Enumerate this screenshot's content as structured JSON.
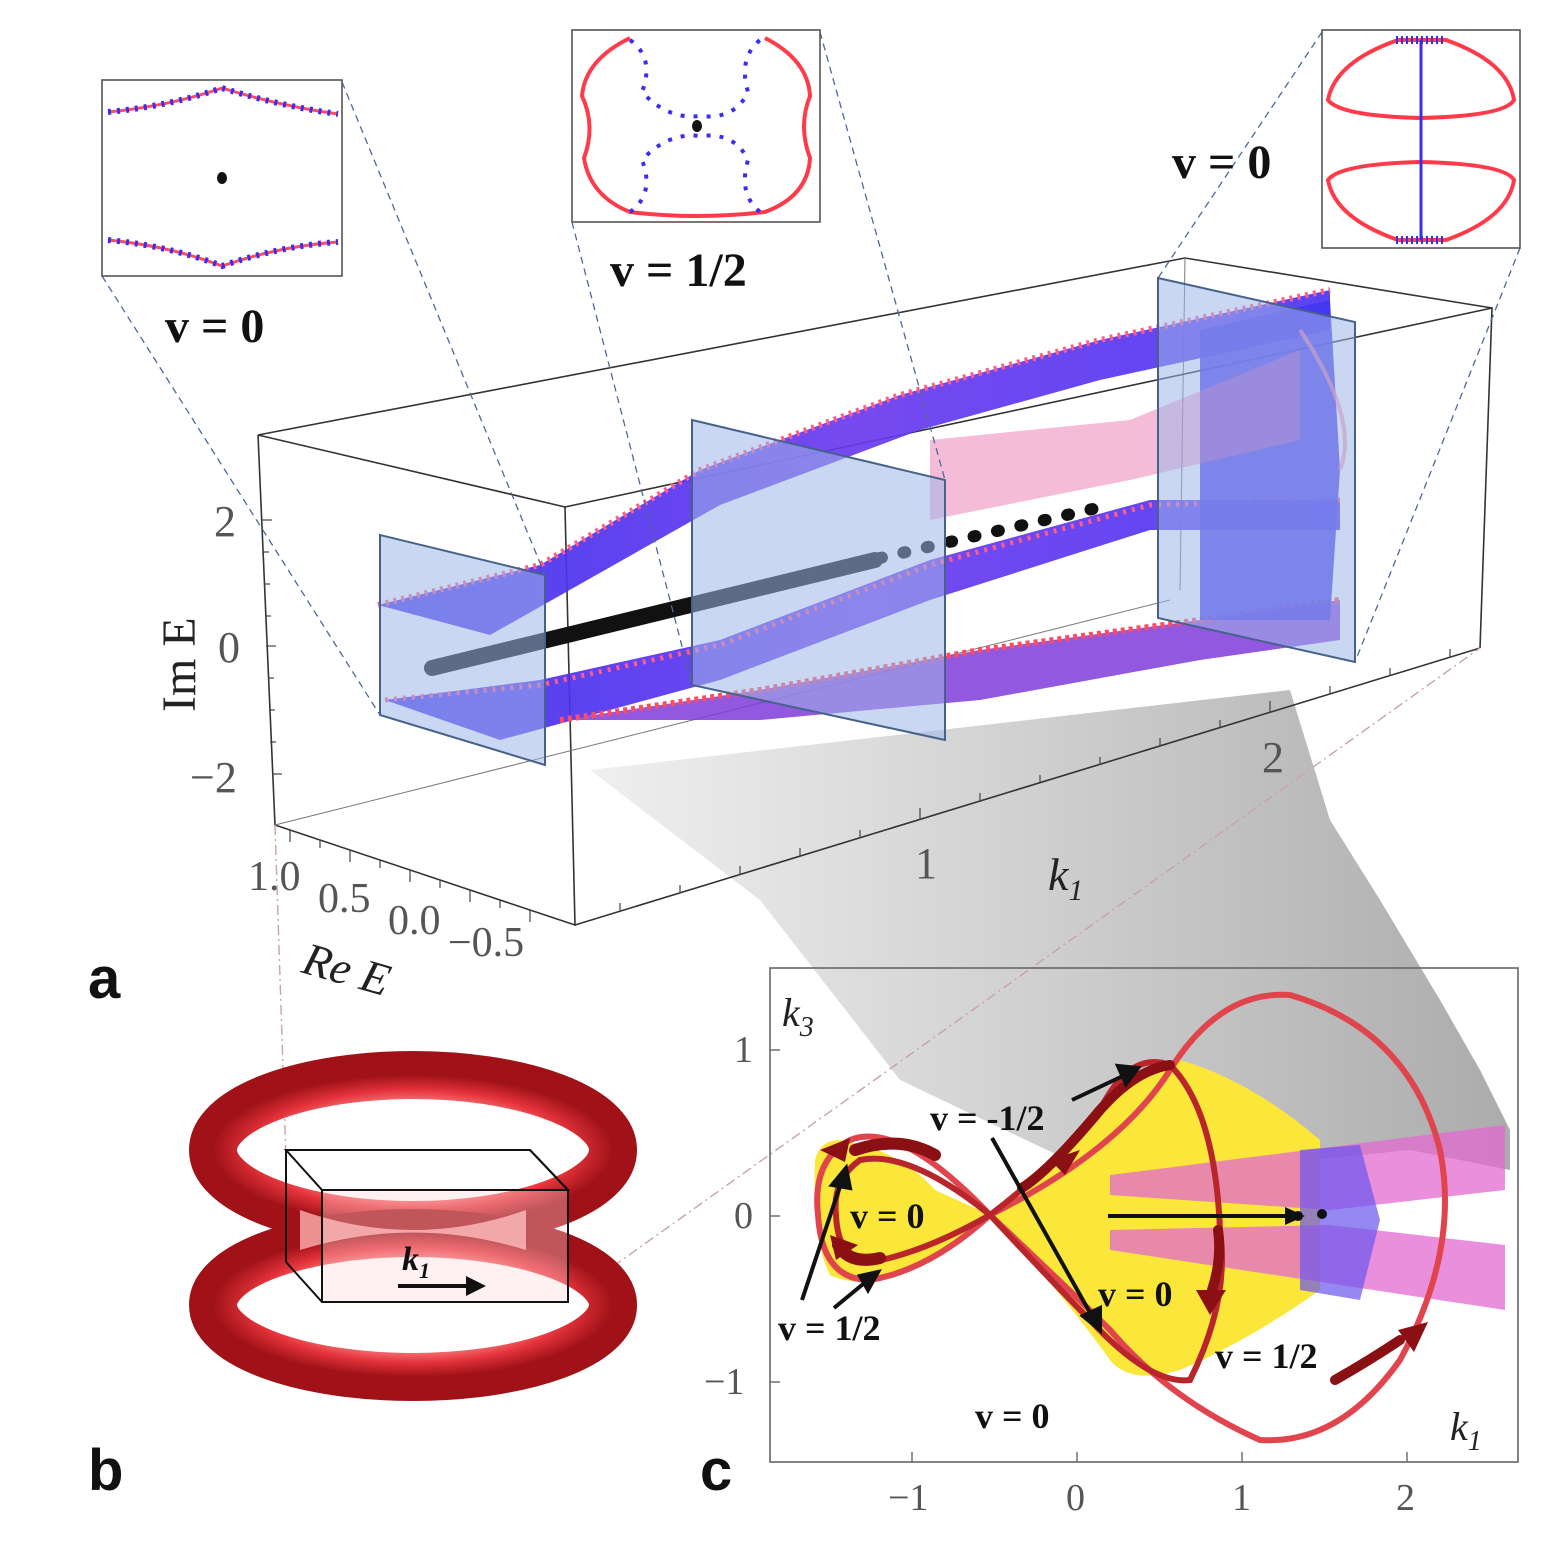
{
  "panel_labels": {
    "a": "a",
    "b": "b",
    "c": "c"
  },
  "insets": {
    "left": {
      "label": "v = 0"
    },
    "middle": {
      "label": "v = 1/2"
    },
    "right": {
      "label": "v = 0"
    }
  },
  "panel_a": {
    "z_axis_label": "Im E",
    "x_axis_label": "Re E",
    "k_axis_label": "k",
    "k_axis_sub": "1",
    "z_ticks": [
      "2",
      "0",
      "−2"
    ],
    "x_ticks": [
      "1.0",
      "0.5",
      "0.0",
      "−0.5"
    ],
    "k_ticks": [
      "1",
      "2"
    ]
  },
  "panel_b": {
    "arrow_label": "k",
    "arrow_sub": "1"
  },
  "panel_c": {
    "y_axis_label": "k",
    "y_axis_sub": "3",
    "x_axis_label": "k",
    "x_axis_sub": "1",
    "y_ticks": [
      "1",
      "0",
      "−1"
    ],
    "x_ticks": [
      "−1",
      "0",
      "1",
      "2"
    ],
    "region_labels": [
      "v = 0",
      "v = -1/2",
      "v = 0",
      "v = 1/2",
      "v = 0",
      "v = 1/2"
    ]
  },
  "colors": {
    "blue": "#3a2cf0",
    "red": "#f04a55",
    "yellow": "#fbe63a",
    "dark_red": "#8a1014",
    "slice": "#9fb6e8"
  }
}
